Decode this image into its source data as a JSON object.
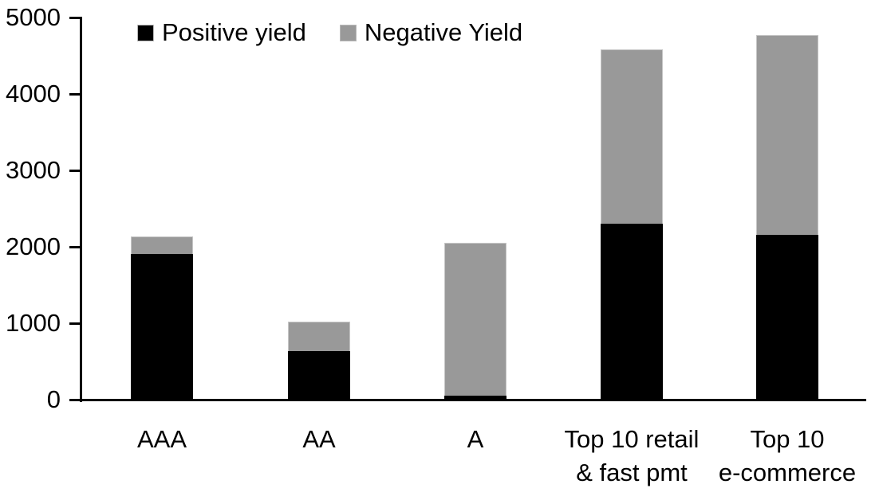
{
  "chart_data": {
    "type": "bar",
    "stacked": true,
    "title": "",
    "xlabel": "",
    "ylabel": "",
    "categories": [
      "AAA",
      "AA",
      "A",
      "Top 10 retail\n& fast pmt",
      "Top 10\ne-commerce"
    ],
    "series": [
      {
        "name": "Positive yield",
        "color": "#000000",
        "values": [
          1900,
          630,
          40,
          2290,
          2150
        ]
      },
      {
        "name": "Negative Yield",
        "color": "#999999",
        "values": [
          220,
          380,
          2000,
          2280,
          2610
        ]
      }
    ],
    "totals": [
      2120,
      1010,
      2040,
      4570,
      4760
    ],
    "ylim": [
      0,
      5000
    ],
    "yticks": [
      0,
      1000,
      2000,
      3000,
      4000,
      5000
    ],
    "grid": false,
    "legend_position": "top",
    "axis_color": "#000000",
    "negative_segment_border_color": "#c6c6c6",
    "background_color": "#ffffff"
  }
}
